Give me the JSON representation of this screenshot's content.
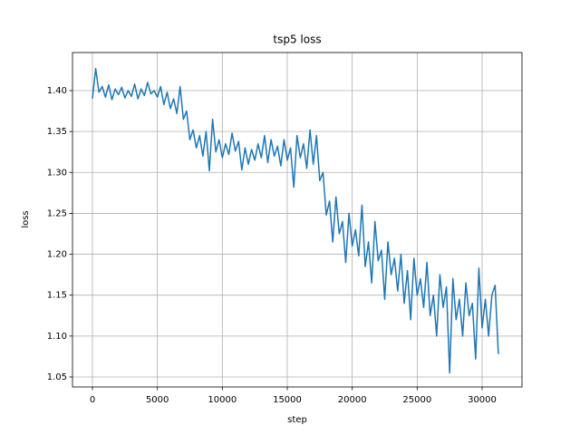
{
  "chart_data": {
    "type": "line",
    "title": "tsp5 loss",
    "xlabel": "step",
    "ylabel": "loss",
    "x": [
      0,
      250,
      500,
      750,
      1000,
      1250,
      1500,
      1750,
      2000,
      2250,
      2500,
      2750,
      3000,
      3250,
      3500,
      3750,
      4000,
      4250,
      4500,
      4750,
      5000,
      5250,
      5500,
      5750,
      6000,
      6250,
      6500,
      6750,
      7000,
      7250,
      7500,
      7750,
      8000,
      8250,
      8500,
      8750,
      9000,
      9250,
      9500,
      9750,
      10000,
      10250,
      10500,
      10750,
      11000,
      11250,
      11500,
      11750,
      12000,
      12250,
      12500,
      12750,
      13000,
      13250,
      13500,
      13750,
      14000,
      14250,
      14500,
      14750,
      15000,
      15250,
      15500,
      15750,
      16000,
      16250,
      16500,
      16750,
      17000,
      17250,
      17500,
      17750,
      18000,
      18250,
      18500,
      18750,
      19000,
      19250,
      19500,
      19750,
      20000,
      20250,
      20500,
      20750,
      21000,
      21250,
      21500,
      21750,
      22000,
      22250,
      22500,
      22750,
      23000,
      23250,
      23500,
      23750,
      24000,
      24250,
      24500,
      24750,
      25000,
      25250,
      25500,
      25750,
      26000,
      26250,
      26500,
      26750,
      27000,
      27250,
      27500,
      27750,
      28000,
      28250,
      28500,
      28750,
      29000,
      29250,
      29500,
      29750,
      30000,
      30250,
      30500,
      30750,
      31000,
      31250
    ],
    "series": [
      {
        "name": "loss",
        "color": "#1f77b4",
        "values": [
          1.39,
          1.427,
          1.398,
          1.405,
          1.392,
          1.407,
          1.389,
          1.402,
          1.395,
          1.404,
          1.391,
          1.4,
          1.393,
          1.408,
          1.39,
          1.402,
          1.394,
          1.41,
          1.396,
          1.4,
          1.392,
          1.405,
          1.383,
          1.398,
          1.378,
          1.39,
          1.372,
          1.405,
          1.365,
          1.375,
          1.34,
          1.352,
          1.33,
          1.345,
          1.32,
          1.35,
          1.302,
          1.365,
          1.325,
          1.34,
          1.318,
          1.335,
          1.322,
          1.348,
          1.326,
          1.338,
          1.303,
          1.33,
          1.31,
          1.328,
          1.315,
          1.335,
          1.318,
          1.345,
          1.312,
          1.34,
          1.32,
          1.332,
          1.308,
          1.34,
          1.315,
          1.33,
          1.282,
          1.345,
          1.318,
          1.335,
          1.305,
          1.352,
          1.31,
          1.345,
          1.29,
          1.3,
          1.248,
          1.265,
          1.215,
          1.27,
          1.225,
          1.24,
          1.19,
          1.25,
          1.21,
          1.23,
          1.198,
          1.26,
          1.185,
          1.215,
          1.165,
          1.24,
          1.192,
          1.205,
          1.145,
          1.215,
          1.175,
          1.195,
          1.155,
          1.2,
          1.14,
          1.18,
          1.12,
          1.195,
          1.15,
          1.17,
          1.135,
          1.19,
          1.125,
          1.15,
          1.1,
          1.175,
          1.135,
          1.16,
          1.055,
          1.17,
          1.12,
          1.145,
          1.1,
          1.165,
          1.125,
          1.14,
          1.072,
          1.183,
          1.11,
          1.145,
          1.1,
          1.15,
          1.162,
          1.078
        ]
      }
    ],
    "xlim": [
      -1535,
      33070
    ],
    "ylim": [
      1.0378,
      1.4465
    ],
    "xticks": [
      0,
      5000,
      10000,
      15000,
      20000,
      25000,
      30000
    ],
    "yticks": [
      1.05,
      {
        "value": 1.1,
        "label": "1.10"
      },
      1.15,
      {
        "value": 1.2,
        "label": "1.20"
      },
      1.25,
      {
        "value": 1.3,
        "label": "1.30"
      },
      1.35,
      {
        "value": 1.4,
        "label": "1.40"
      }
    ],
    "grid": true
  }
}
